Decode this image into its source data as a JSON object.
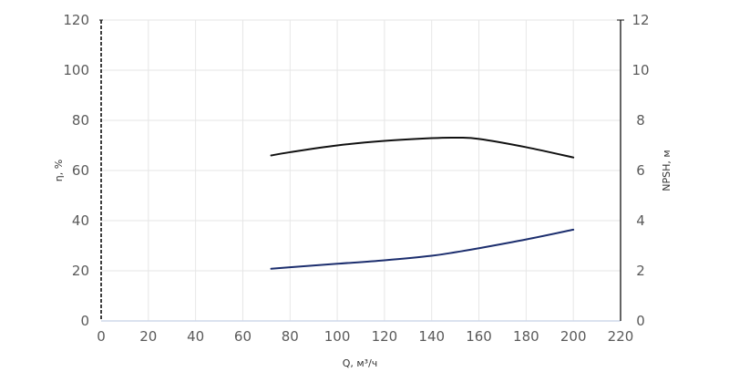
{
  "chart_data": {
    "type": "line",
    "xlabel": "Q, м³/ч",
    "ylabel": "η, %",
    "y2label": "NPSH, м",
    "xlim": [
      0,
      220
    ],
    "ylim": [
      0,
      120
    ],
    "y2lim": [
      0,
      12
    ],
    "xticks": [
      0,
      20,
      40,
      60,
      80,
      100,
      120,
      140,
      160,
      180,
      200,
      220
    ],
    "yticks": [
      0,
      20,
      40,
      60,
      80,
      100,
      120
    ],
    "y2ticks": [
      0,
      2,
      4,
      6,
      8,
      10,
      12
    ],
    "grid": true,
    "legend": "none",
    "series": [
      {
        "axis": "left",
        "color": "#111111",
        "x": [
          72,
          80,
          100,
          120,
          140,
          150,
          160,
          180,
          200
        ],
        "y": [
          66,
          67.3,
          70,
          71.8,
          72.9,
          73.1,
          72.6,
          69.3,
          65.2
        ]
      },
      {
        "axis": "right",
        "color": "#1c2e6e",
        "x": [
          72,
          80,
          100,
          120,
          140,
          150,
          160,
          180,
          200
        ],
        "y": [
          2.08,
          2.14,
          2.28,
          2.42,
          2.6,
          2.74,
          2.9,
          3.25,
          3.64
        ]
      }
    ]
  }
}
